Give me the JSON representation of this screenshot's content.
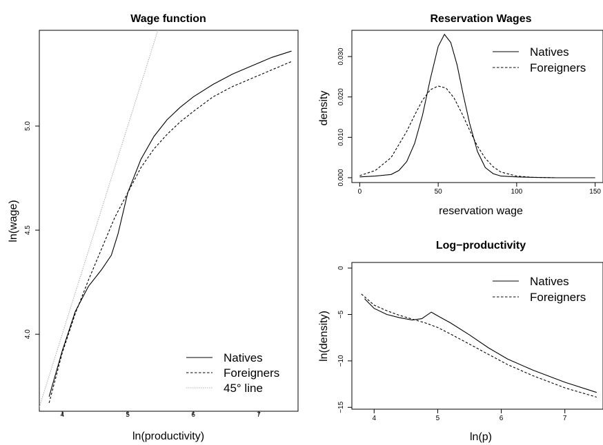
{
  "chart_data": [
    {
      "type": "line",
      "title": "Wage function",
      "xlabel": "ln(productivity)",
      "ylabel": "ln(wage)",
      "xlim": [
        3.65,
        7.6
      ],
      "ylim": [
        3.63,
        5.46
      ],
      "xticks": [
        "4",
        "5",
        "6",
        "7"
      ],
      "yticks": [
        "4.0",
        "4.5",
        "5.0"
      ],
      "legend_position": "bottom-right",
      "legend": [
        "Natives",
        "Foreigners",
        "45° line"
      ],
      "series": [
        {
          "name": "Natives",
          "line_style": "solid",
          "x": [
            3.8,
            4.0,
            4.2,
            4.4,
            4.6,
            4.75,
            4.85,
            5.0,
            5.2,
            5.4,
            5.6,
            5.8,
            6.0,
            6.3,
            6.6,
            6.9,
            7.2,
            7.5
          ],
          "y": [
            3.7,
            3.92,
            4.11,
            4.23,
            4.31,
            4.38,
            4.48,
            4.68,
            4.84,
            4.95,
            5.03,
            5.09,
            5.14,
            5.2,
            5.25,
            5.29,
            5.33,
            5.36
          ]
        },
        {
          "name": "Foreigners",
          "line_style": "dashed",
          "x": [
            3.8,
            4.0,
            4.2,
            4.4,
            4.6,
            4.8,
            5.0,
            5.2,
            5.4,
            5.6,
            5.8,
            6.0,
            6.3,
            6.6,
            6.9,
            7.2,
            7.5
          ],
          "y": [
            3.67,
            3.91,
            4.1,
            4.26,
            4.41,
            4.56,
            4.68,
            4.8,
            4.89,
            4.96,
            5.02,
            5.07,
            5.14,
            5.19,
            5.23,
            5.27,
            5.31
          ]
        },
        {
          "name": "45° line",
          "line_style": "dotted",
          "x": [
            3.65,
            5.5
          ],
          "y": [
            3.65,
            5.5
          ]
        }
      ]
    },
    {
      "type": "line",
      "title": "Reservation Wages",
      "xlabel": "reservation wage",
      "ylabel": "density",
      "xlim": [
        -5,
        155
      ],
      "ylim": [
        -0.0012,
        0.0365
      ],
      "xticks": [
        "0",
        "50",
        "100",
        "150"
      ],
      "yticks": [
        "0.000",
        "0.010",
        "0.020",
        "0.030"
      ],
      "legend_position": "top-right",
      "legend": [
        "Natives",
        "Foreigners"
      ],
      "series": [
        {
          "name": "Natives",
          "line_style": "solid",
          "x": [
            0,
            10,
            20,
            25,
            30,
            35,
            40,
            45,
            50,
            54,
            58,
            62,
            66,
            70,
            75,
            80,
            85,
            90,
            100,
            110,
            125,
            150
          ],
          "y": [
            0.0002,
            0.0004,
            0.0008,
            0.0018,
            0.004,
            0.0085,
            0.0155,
            0.0245,
            0.0325,
            0.0355,
            0.0335,
            0.028,
            0.0205,
            0.0135,
            0.0065,
            0.0025,
            0.001,
            0.0004,
            0.0002,
            0.0001,
            0.0,
            0.0
          ]
        },
        {
          "name": "Foreigners",
          "line_style": "dashed",
          "x": [
            0,
            10,
            20,
            30,
            35,
            40,
            45,
            50,
            55,
            60,
            65,
            70,
            75,
            80,
            85,
            90,
            100,
            110,
            125,
            150
          ],
          "y": [
            0.0005,
            0.0018,
            0.005,
            0.0115,
            0.0155,
            0.0192,
            0.0218,
            0.0227,
            0.0222,
            0.0198,
            0.016,
            0.0118,
            0.0078,
            0.0048,
            0.0027,
            0.0014,
            0.0004,
            0.0001,
            0.0,
            0.0
          ]
        }
      ]
    },
    {
      "type": "line",
      "title": "Log−productivity",
      "xlabel": "ln(p)",
      "ylabel": "ln(density)",
      "xlim": [
        3.65,
        7.6
      ],
      "ylim": [
        -15.2,
        0.6
      ],
      "xticks": [
        "4",
        "5",
        "6",
        "7"
      ],
      "yticks": [
        "0",
        "−5",
        "−10",
        "−15"
      ],
      "yticks_values": [
        0,
        -5,
        -10,
        -15
      ],
      "legend_position": "top-right",
      "legend": [
        "Natives",
        "Foreigners"
      ],
      "series": [
        {
          "name": "Natives",
          "line_style": "solid",
          "x": [
            3.85,
            4.0,
            4.2,
            4.4,
            4.6,
            4.75,
            4.9,
            5.0,
            5.2,
            5.5,
            5.8,
            6.1,
            6.5,
            7.0,
            7.5
          ],
          "y": [
            -3.3,
            -4.35,
            -5.0,
            -5.35,
            -5.6,
            -5.45,
            -4.75,
            -5.15,
            -5.9,
            -7.2,
            -8.6,
            -9.8,
            -11.0,
            -12.3,
            -13.4
          ]
        },
        {
          "name": "Foreigners",
          "line_style": "dashed",
          "x": [
            3.8,
            4.0,
            4.2,
            4.4,
            4.6,
            4.8,
            5.0,
            5.2,
            5.5,
            5.8,
            6.1,
            6.5,
            7.0,
            7.5
          ],
          "y": [
            -2.8,
            -4.0,
            -4.6,
            -5.1,
            -5.5,
            -5.9,
            -6.4,
            -7.1,
            -8.2,
            -9.3,
            -10.4,
            -11.6,
            -12.9,
            -13.9
          ]
        }
      ]
    }
  ]
}
